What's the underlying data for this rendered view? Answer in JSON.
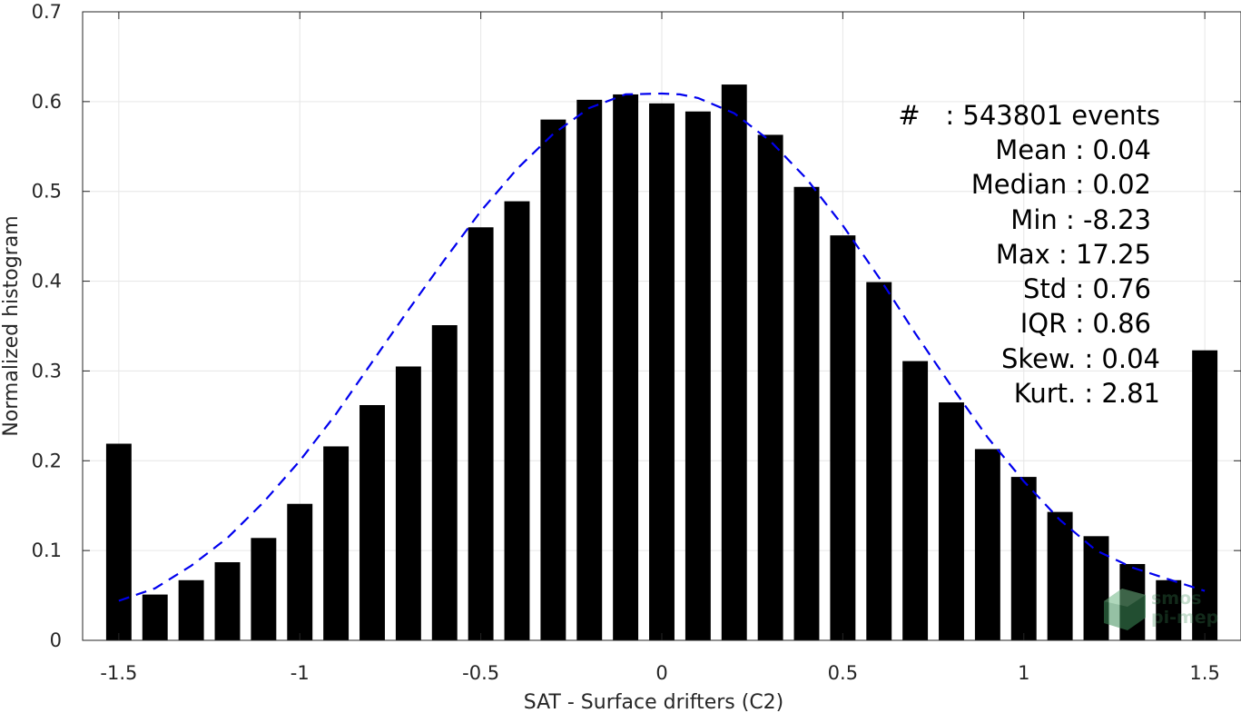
{
  "chart_data": {
    "type": "bar",
    "xlabel": "SAT - Surface drifters (C2)",
    "ylabel": "Normalized histogram",
    "xlim": [
      -1.6,
      1.6
    ],
    "ylim": [
      0,
      0.7
    ],
    "xticks": [
      -1.5,
      -1,
      -0.5,
      0,
      0.5,
      1,
      1.5
    ],
    "xtick_labels": [
      "-1.5",
      "-1",
      "-0.5",
      "0",
      "0.5",
      "1",
      "1.5"
    ],
    "yticks": [
      0,
      0.1,
      0.2,
      0.3,
      0.4,
      0.5,
      0.6,
      0.7
    ],
    "ytick_labels": [
      "0",
      "0.1",
      "0.2",
      "0.3",
      "0.4",
      "0.5",
      "0.6",
      "0.7"
    ],
    "grid": true,
    "bar_width": 0.07,
    "x": [
      -1.5,
      -1.4,
      -1.3,
      -1.2,
      -1.1,
      -1.0,
      -0.9,
      -0.8,
      -0.7,
      -0.6,
      -0.5,
      -0.4,
      -0.3,
      -0.2,
      -0.1,
      0.0,
      0.1,
      0.2,
      0.3,
      0.4,
      0.5,
      0.6,
      0.7,
      0.8,
      0.9,
      1.0,
      1.1,
      1.2,
      1.3,
      1.4,
      1.5
    ],
    "values": [
      0.219,
      0.051,
      0.067,
      0.087,
      0.114,
      0.152,
      0.216,
      0.262,
      0.305,
      0.351,
      0.46,
      0.489,
      0.58,
      0.602,
      0.608,
      0.598,
      0.589,
      0.619,
      0.563,
      0.505,
      0.451,
      0.399,
      0.311,
      0.265,
      0.213,
      0.182,
      0.143,
      0.116,
      0.085,
      0.067,
      0.323
    ],
    "bar_color": "#000000",
    "fit_curve": {
      "style": "dashed",
      "color": "#0000ee",
      "x": [
        -1.5,
        -1.4,
        -1.3,
        -1.2,
        -1.1,
        -1.0,
        -0.9,
        -0.8,
        -0.7,
        -0.6,
        -0.5,
        -0.4,
        -0.3,
        -0.2,
        -0.1,
        0.0,
        0.05,
        0.1,
        0.2,
        0.3,
        0.4,
        0.5,
        0.6,
        0.7,
        0.8,
        0.9,
        1.0,
        1.1,
        1.2,
        1.3,
        1.4,
        1.5
      ],
      "y": [
        0.044,
        0.058,
        0.083,
        0.114,
        0.154,
        0.2,
        0.252,
        0.31,
        0.368,
        0.424,
        0.478,
        0.525,
        0.564,
        0.593,
        0.608,
        0.609,
        0.608,
        0.604,
        0.587,
        0.556,
        0.514,
        0.462,
        0.404,
        0.342,
        0.283,
        0.226,
        0.177,
        0.134,
        0.1,
        0.081,
        0.068,
        0.055
      ]
    },
    "annotations": [
      "#   : 543801 events",
      "Mean : 0.04",
      "Median : 0.02",
      "Min : -8.23",
      "Max : 17.25",
      "Std : 0.76",
      "IQR : 0.86",
      "Skew. : 0.04",
      "Kurt. : 2.81"
    ]
  },
  "watermark": {
    "line1": "smos",
    "line2": "pi-mep",
    "color": "#3f8f5a"
  }
}
